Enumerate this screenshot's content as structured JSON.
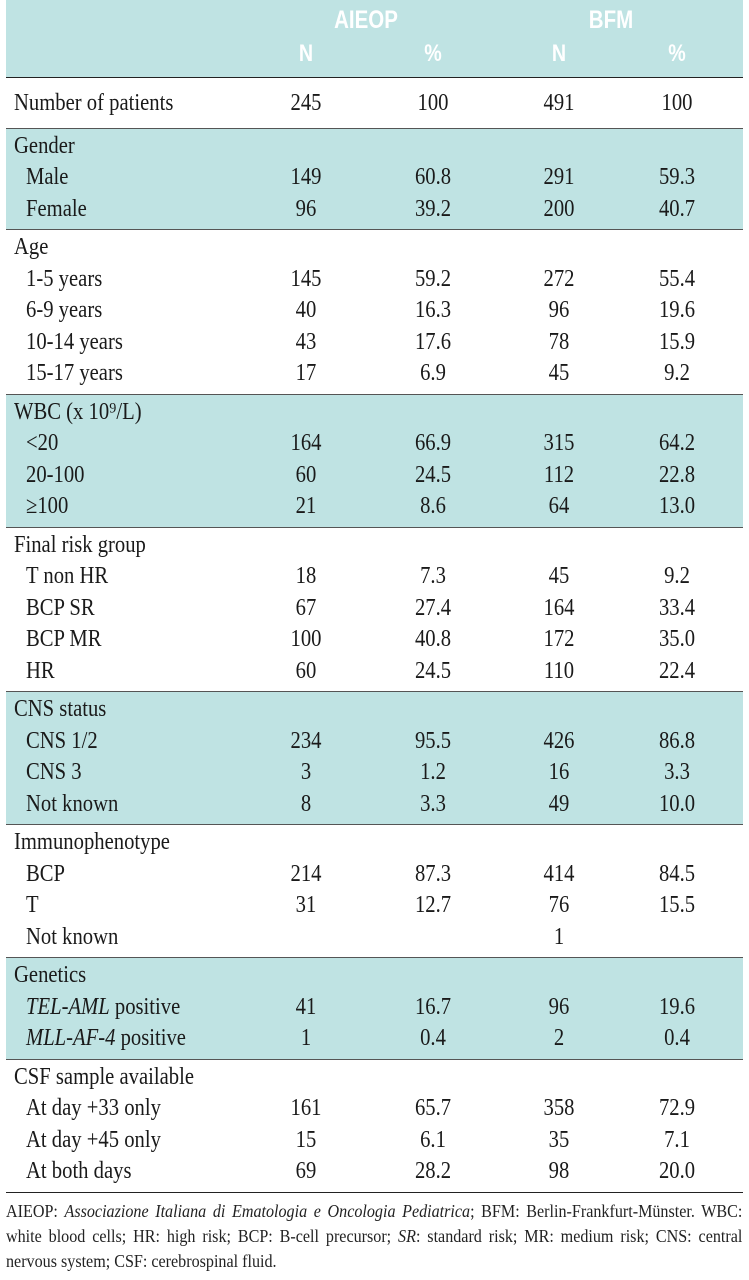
{
  "header": {
    "group_a": "AIEOP",
    "group_b": "BFM",
    "n": "N",
    "pct": "%"
  },
  "sections": [
    {
      "shade": false,
      "first": true,
      "title": null,
      "rows": [
        {
          "label": "Number of patients",
          "a_n": "245",
          "a_p": "100",
          "b_n": "491",
          "b_p": "100",
          "top": true
        }
      ]
    },
    {
      "shade": true,
      "title": "Gender",
      "rows": [
        {
          "label": "Male",
          "a_n": "149",
          "a_p": "60.8",
          "b_n": "291",
          "b_p": "59.3"
        },
        {
          "label": "Female",
          "a_n": "96",
          "a_p": "39.2",
          "b_n": "200",
          "b_p": "40.7"
        }
      ]
    },
    {
      "shade": false,
      "title": "Age",
      "rows": [
        {
          "label": "1-5 years",
          "a_n": "145",
          "a_p": "59.2",
          "b_n": "272",
          "b_p": "55.4"
        },
        {
          "label": "6-9 years",
          "a_n": "40",
          "a_p": "16.3",
          "b_n": "96",
          "b_p": "19.6"
        },
        {
          "label": "10-14 years",
          "a_n": "43",
          "a_p": "17.6",
          "b_n": "78",
          "b_p": "15.9"
        },
        {
          "label": "15-17 years",
          "a_n": "17",
          "a_p": "6.9",
          "b_n": "45",
          "b_p": "9.2"
        }
      ]
    },
    {
      "shade": true,
      "title": "WBC (x 10⁹/L)",
      "rows": [
        {
          "label": "<20",
          "a_n": "164",
          "a_p": "66.9",
          "b_n": "315",
          "b_p": "64.2"
        },
        {
          "label": "20-100",
          "a_n": "60",
          "a_p": "24.5",
          "b_n": "112",
          "b_p": "22.8"
        },
        {
          "label": "≥100",
          "a_n": "21",
          "a_p": "8.6",
          "b_n": "64",
          "b_p": "13.0"
        }
      ]
    },
    {
      "shade": false,
      "title": "Final risk group",
      "rows": [
        {
          "label": "T non HR",
          "a_n": "18",
          "a_p": "7.3",
          "b_n": "45",
          "b_p": "9.2"
        },
        {
          "label": "BCP SR",
          "a_n": "67",
          "a_p": "27.4",
          "b_n": "164",
          "b_p": "33.4"
        },
        {
          "label": "BCP MR",
          "a_n": "100",
          "a_p": "40.8",
          "b_n": "172",
          "b_p": "35.0"
        },
        {
          "label": "HR",
          "a_n": "60",
          "a_p": "24.5",
          "b_n": "110",
          "b_p": "22.4"
        }
      ]
    },
    {
      "shade": true,
      "title": "CNS status",
      "rows": [
        {
          "label": "CNS 1/2",
          "a_n": "234",
          "a_p": "95.5",
          "b_n": "426",
          "b_p": "86.8"
        },
        {
          "label": "CNS 3",
          "a_n": "3",
          "a_p": "1.2",
          "b_n": "16",
          "b_p": "3.3"
        },
        {
          "label": "Not known",
          "a_n": "8",
          "a_p": "3.3",
          "b_n": "49",
          "b_p": "10.0"
        }
      ]
    },
    {
      "shade": false,
      "title": "Immunophenotype",
      "rows": [
        {
          "label": "BCP",
          "a_n": "214",
          "a_p": "87.3",
          "b_n": "414",
          "b_p": "84.5"
        },
        {
          "label": "T",
          "a_n": "31",
          "a_p": "12.7",
          "b_n": "76",
          "b_p": "15.5"
        },
        {
          "label": "Not known",
          "a_n": "",
          "a_p": "",
          "b_n": "1",
          "b_p": ""
        }
      ]
    },
    {
      "shade": true,
      "title": "Genetics",
      "rows": [
        {
          "label_it": "TEL-AML",
          "label": " positive",
          "a_n": "41",
          "a_p": "16.7",
          "b_n": "96",
          "b_p": "19.6"
        },
        {
          "label_it": "MLL-AF-4",
          "label": " positive",
          "a_n": "1",
          "a_p": "0.4",
          "b_n": "2",
          "b_p": "0.4"
        }
      ]
    },
    {
      "shade": false,
      "last": true,
      "title": "CSF sample available",
      "rows": [
        {
          "label": "At day +33 only",
          "a_n": "161",
          "a_p": "65.7",
          "b_n": "358",
          "b_p": "72.9"
        },
        {
          "label": "At day +45 only",
          "a_n": "15",
          "a_p": "6.1",
          "b_n": "35",
          "b_p": "7.1"
        },
        {
          "label": "At both days",
          "a_n": "69",
          "a_p": "28.2",
          "b_n": "98",
          "b_p": "20.0"
        }
      ]
    }
  ],
  "footnote": {
    "p1": "AIEOP: ",
    "p1_it": "Associazione Italiana di Ematologia e Oncologia Pediatrica",
    "p2": "; BFM: Berlin-Frankfurt-Münster. WBC: white blood cells; HR: high risk; BCP: B-cell precursor; ",
    "p2_it": "SR",
    "p3": ": standard risk; MR: medium risk; CNS: central nervous system; CSF: cerebrospinal fluid."
  }
}
